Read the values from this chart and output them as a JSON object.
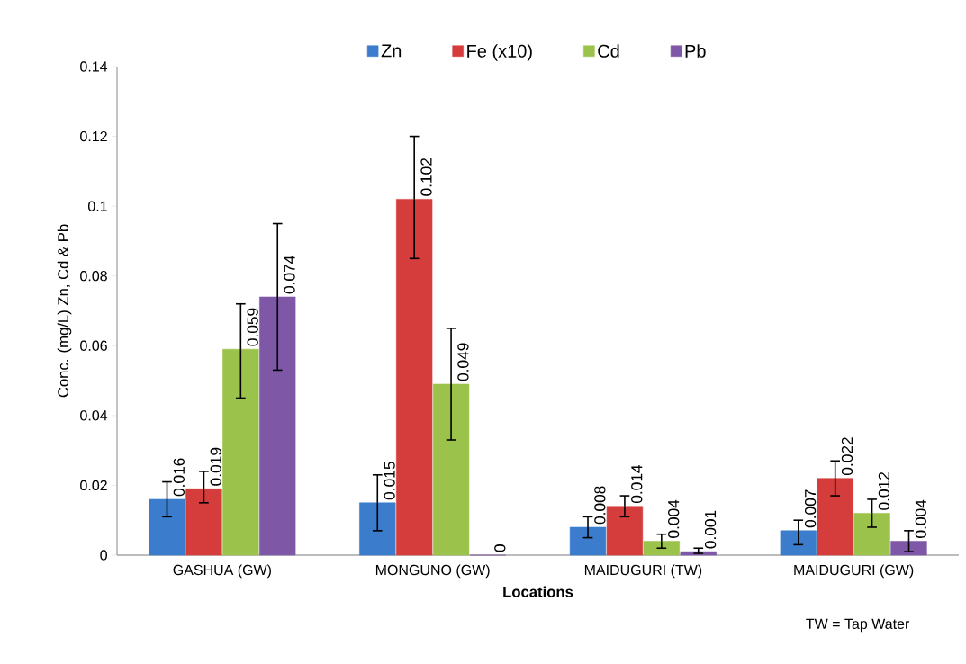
{
  "chart_data": {
    "type": "bar",
    "categories": [
      "GASHUA (GW)",
      "MONGUNO (GW)",
      "MAIDUGURI (TW)",
      "MAIDUGURI (GW)"
    ],
    "series": [
      {
        "name": "Zn",
        "color": "#3b7dcc",
        "values": [
          0.016,
          0.015,
          0.008,
          0.007
        ],
        "errors": [
          [
            0.011,
            0.021
          ],
          [
            0.007,
            0.023
          ],
          [
            0.005,
            0.011
          ],
          [
            0.003,
            0.01
          ]
        ]
      },
      {
        "name": "Fe (x10)",
        "color": "#d43d3b",
        "values": [
          0.019,
          0.102,
          0.014,
          0.022
        ],
        "errors": [
          [
            0.015,
            0.024
          ],
          [
            0.085,
            0.12
          ],
          [
            0.011,
            0.017
          ],
          [
            0.017,
            0.027
          ]
        ]
      },
      {
        "name": "Cd",
        "color": "#9bc24a",
        "values": [
          0.059,
          0.049,
          0.004,
          0.012
        ],
        "errors": [
          [
            0.045,
            0.072
          ],
          [
            0.033,
            0.065
          ],
          [
            0.002,
            0.006
          ],
          [
            0.008,
            0.016
          ]
        ]
      },
      {
        "name": "Pb",
        "color": "#7e58a6",
        "values": [
          0.074,
          0,
          0.001,
          0.004
        ],
        "errors": [
          [
            0.053,
            0.095
          ],
          null,
          [
            0.0005,
            0.002
          ],
          [
            0.001,
            0.007
          ]
        ]
      }
    ],
    "ylim": [
      0,
      0.14
    ],
    "yticks": [
      0,
      0.02,
      0.04,
      0.06,
      0.08,
      0.1,
      0.12,
      0.14
    ],
    "ylabel": "Conc. (mg/L) Zn, Cd & Pb",
    "xlabel": "Locations",
    "legend": "top",
    "data_labels": true,
    "grid": false,
    "annotations": [
      "TW = Tap Water"
    ]
  }
}
